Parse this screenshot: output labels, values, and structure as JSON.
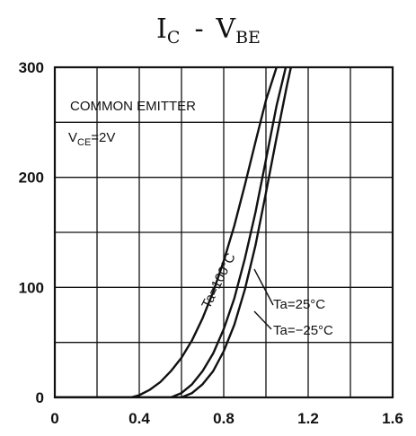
{
  "chart_data": {
    "type": "line",
    "title": {
      "main": "I",
      "main_sub": "C",
      "dash": "-",
      "rhs": "V",
      "rhs_sub": "BE"
    },
    "xlabel": "",
    "ylabel": "",
    "xlim": [
      0,
      1.6
    ],
    "ylim": [
      0,
      300
    ],
    "grid": true,
    "x_ticks": [
      {
        "value": 0,
        "label": "0"
      },
      {
        "value": 0.4,
        "label": "0.4"
      },
      {
        "value": 0.8,
        "label": "0.8"
      },
      {
        "value": 1.2,
        "label": "1.2"
      },
      {
        "value": 1.6,
        "label": "1.6"
      }
    ],
    "y_ticks": [
      {
        "value": 0,
        "label": "0"
      },
      {
        "value": 100,
        "label": "100"
      },
      {
        "value": 200,
        "label": "200"
      },
      {
        "value": 300,
        "label": "300"
      }
    ],
    "x_grid": [
      0.2,
      0.4,
      0.6,
      0.8,
      1.0,
      1.2,
      1.4
    ],
    "y_grid": [
      50,
      100,
      150,
      200,
      250
    ],
    "annotations": {
      "condition_line1": "COMMON EMITTER",
      "condition_line2_main": "V",
      "condition_line2_sub": "CE",
      "condition_line2_rest": "=2V"
    },
    "series": [
      {
        "name": "Ta=100°C",
        "x": [
          0.0,
          0.36,
          0.4,
          0.45,
          0.5,
          0.55,
          0.6,
          0.65,
          0.7,
          0.75,
          0.8,
          0.85,
          0.9,
          0.95,
          1.0,
          1.05,
          1.1
        ],
        "y": [
          0,
          0,
          2,
          7,
          14,
          24,
          36,
          52,
          72,
          96,
          124,
          156,
          193,
          232,
          270,
          300,
          320
        ]
      },
      {
        "name": "Ta=25°C",
        "x": [
          0.0,
          0.55,
          0.6,
          0.65,
          0.7,
          0.75,
          0.8,
          0.85,
          0.9,
          0.95,
          1.0,
          1.05,
          1.1,
          1.12
        ],
        "y": [
          0,
          0,
          4,
          12,
          24,
          40,
          62,
          90,
          126,
          168,
          216,
          265,
          305,
          320
        ]
      },
      {
        "name": "Ta=-25°C",
        "x": [
          0.0,
          0.6,
          0.65,
          0.7,
          0.75,
          0.8,
          0.85,
          0.9,
          0.95,
          1.0,
          1.05,
          1.1,
          1.13,
          1.16
        ],
        "y": [
          0,
          0,
          4,
          12,
          24,
          42,
          66,
          98,
          138,
          186,
          236,
          284,
          310,
          330
        ]
      }
    ],
    "series_labels": [
      {
        "series": 0,
        "text": "Ta=100°C"
      },
      {
        "series": 1,
        "text": "Ta=25°C"
      },
      {
        "series": 2,
        "text": "Ta=−25°C"
      }
    ]
  }
}
